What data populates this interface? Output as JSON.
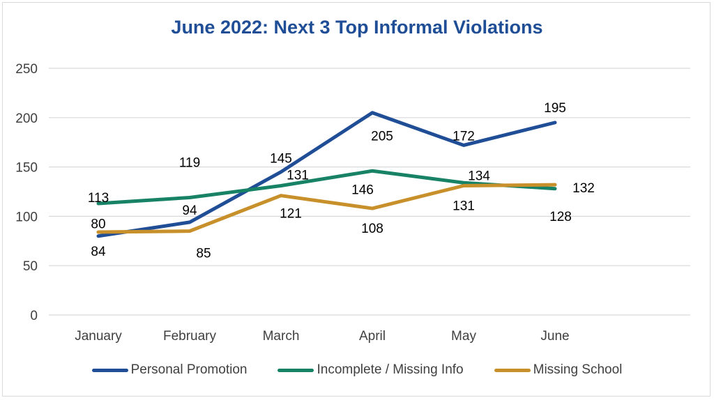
{
  "chart_data": {
    "type": "line",
    "title": "June 2022: Next 3 Top Informal Violations",
    "categories": [
      "January",
      "February",
      "March",
      "April",
      "May",
      "June"
    ],
    "ylim": [
      0,
      250
    ],
    "yticks": [
      "0",
      "50",
      "100",
      "150",
      "200",
      "250"
    ],
    "grid": true,
    "legend": "bottom",
    "series": [
      {
        "name": "Personal Promotion",
        "color": "#1f4e96",
        "values": [
          80,
          94,
          145,
          205,
          172,
          195
        ]
      },
      {
        "name": "Incomplete / Missing Info",
        "color": "#178266",
        "values": [
          113,
          119,
          131,
          146,
          134,
          128
        ]
      },
      {
        "name": "Missing School",
        "color": "#c8902a",
        "values": [
          84,
          85,
          121,
          108,
          131,
          132
        ]
      }
    ]
  }
}
